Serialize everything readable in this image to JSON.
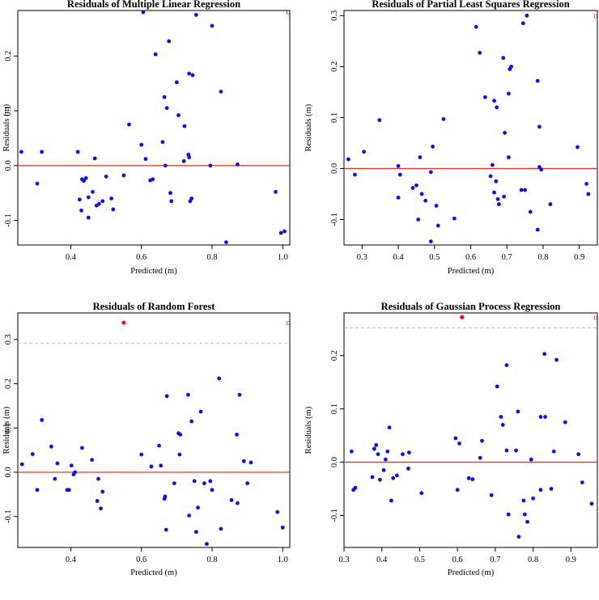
{
  "chart_data": [
    {
      "type": "scatter",
      "title": "Residuals of Multiple Linear Regression",
      "xlabel": "Predicted (m)",
      "ylabel": "Residuals (m)",
      "xlim": [
        0.25,
        1.02
      ],
      "ylim": [
        -0.145,
        0.283
      ],
      "xticks": [
        "0.4",
        "0.6",
        "0.8",
        "1.0"
      ],
      "yticks": [
        "-0.1",
        "0.0",
        "0.1",
        "0.2"
      ],
      "zero_line_color": "#e8342e",
      "point_color": "#1010e0",
      "outlier_symbol": "o",
      "points": [
        [
          0.26,
          0.025
        ],
        [
          0.305,
          -0.033
        ],
        [
          0.318,
          0.025
        ],
        [
          0.42,
          0.025
        ],
        [
          0.425,
          -0.062
        ],
        [
          0.43,
          -0.082
        ],
        [
          0.432,
          -0.025
        ],
        [
          0.437,
          -0.028
        ],
        [
          0.443,
          -0.023
        ],
        [
          0.45,
          -0.058
        ],
        [
          0.45,
          -0.095
        ],
        [
          0.462,
          -0.048
        ],
        [
          0.468,
          0.013
        ],
        [
          0.473,
          -0.073
        ],
        [
          0.48,
          -0.07
        ],
        [
          0.49,
          -0.065
        ],
        [
          0.5,
          -0.02
        ],
        [
          0.515,
          -0.06
        ],
        [
          0.52,
          -0.08
        ],
        [
          0.55,
          -0.018
        ],
        [
          0.565,
          0.075
        ],
        [
          0.6,
          0.038
        ],
        [
          0.605,
          0.28
        ],
        [
          0.612,
          0.012
        ],
        [
          0.625,
          -0.027
        ],
        [
          0.632,
          -0.025
        ],
        [
          0.64,
          0.203
        ],
        [
          0.66,
          0.043
        ],
        [
          0.665,
          0.125
        ],
        [
          0.668,
          0.0
        ],
        [
          0.672,
          0.105
        ],
        [
          0.678,
          0.227
        ],
        [
          0.682,
          -0.05
        ],
        [
          0.685,
          -0.065
        ],
        [
          0.7,
          0.152
        ],
        [
          0.705,
          0.092
        ],
        [
          0.72,
          0.008
        ],
        [
          0.722,
          0.072
        ],
        [
          0.733,
          0.02
        ],
        [
          0.735,
          0.015
        ],
        [
          0.735,
          0.168
        ],
        [
          0.738,
          -0.065
        ],
        [
          0.742,
          -0.06
        ],
        [
          0.745,
          0.165
        ],
        [
          0.755,
          0.275
        ],
        [
          0.795,
          0.0
        ],
        [
          0.8,
          0.255
        ],
        [
          0.825,
          0.135
        ],
        [
          0.84,
          -0.14
        ],
        [
          0.872,
          0.002
        ],
        [
          0.98,
          -0.048
        ],
        [
          0.995,
          -0.123
        ],
        [
          1.005,
          -0.12
        ]
      ],
      "outliers": [
        [
          1.02,
          0.28
        ]
      ]
    },
    {
      "type": "scatter",
      "title": "Residuals of Partial Least Squares Regression",
      "xlabel": "Predicted (m)",
      "ylabel": "Residuals (m)",
      "xlim": [
        0.25,
        0.95
      ],
      "ylim": [
        -0.15,
        0.31
      ],
      "xticks": [
        "0.3",
        "0.4",
        "0.5",
        "0.6",
        "0.7",
        "0.8",
        "0.9"
      ],
      "yticks": [
        "-0.1",
        "0.0",
        "0.1",
        "0.2",
        "0.3"
      ],
      "zero_line_color": "#e8342e",
      "point_color": "#1010e0",
      "outlier_symbol": "o",
      "points": [
        [
          0.262,
          0.018
        ],
        [
          0.28,
          -0.012
        ],
        [
          0.305,
          0.033
        ],
        [
          0.348,
          0.095
        ],
        [
          0.4,
          0.005
        ],
        [
          0.4,
          -0.057
        ],
        [
          0.405,
          -0.012
        ],
        [
          0.44,
          -0.038
        ],
        [
          0.45,
          -0.033
        ],
        [
          0.455,
          -0.1
        ],
        [
          0.46,
          0.022
        ],
        [
          0.465,
          -0.05
        ],
        [
          0.475,
          -0.063
        ],
        [
          0.49,
          -0.007
        ],
        [
          0.49,
          -0.143
        ],
        [
          0.495,
          0.043
        ],
        [
          0.505,
          -0.073
        ],
        [
          0.51,
          -0.112
        ],
        [
          0.525,
          0.097
        ],
        [
          0.555,
          -0.098
        ],
        [
          0.615,
          0.278
        ],
        [
          0.625,
          0.227
        ],
        [
          0.64,
          0.14
        ],
        [
          0.655,
          -0.015
        ],
        [
          0.66,
          0.007
        ],
        [
          0.665,
          -0.047
        ],
        [
          0.665,
          0.133
        ],
        [
          0.67,
          -0.025
        ],
        [
          0.672,
          0.12
        ],
        [
          0.675,
          -0.06
        ],
        [
          0.678,
          -0.07
        ],
        [
          0.69,
          0.217
        ],
        [
          0.692,
          -0.055
        ],
        [
          0.694,
          0.07
        ],
        [
          0.705,
          0.022
        ],
        [
          0.705,
          0.147
        ],
        [
          0.708,
          0.195
        ],
        [
          0.712,
          0.2
        ],
        [
          0.74,
          -0.042
        ],
        [
          0.745,
          0.285
        ],
        [
          0.75,
          -0.042
        ],
        [
          0.755,
          0.3
        ],
        [
          0.765,
          -0.085
        ],
        [
          0.785,
          0.172
        ],
        [
          0.785,
          -0.12
        ],
        [
          0.79,
          0.082
        ],
        [
          0.79,
          0.003
        ],
        [
          0.795,
          -0.002
        ],
        [
          0.82,
          -0.07
        ],
        [
          0.895,
          0.042
        ],
        [
          0.92,
          -0.03
        ],
        [
          0.925,
          -0.05
        ]
      ],
      "outliers": [
        [
          0.952,
          0.3
        ]
      ]
    },
    {
      "type": "scatter",
      "title": "Residuals of Random Forest",
      "xlabel": "Predicted (m)",
      "ylabel": "Residuals (m)",
      "xlim": [
        0.25,
        1.02
      ],
      "ylim": [
        -0.17,
        0.36
      ],
      "xticks": [
        "0.4",
        "0.6",
        "0.8",
        "1.0"
      ],
      "yticks": [
        "-0.1",
        "0.0",
        "0.1",
        "0.2",
        "0.3"
      ],
      "zero_line_color": "#e8342e",
      "point_color": "#1010e0",
      "threshold_line": 0.292,
      "highlight_point": [
        0.55,
        0.338
      ],
      "highlight_color": "#e0141c",
      "outlier_symbol": "o",
      "points": [
        [
          0.262,
          0.018
        ],
        [
          0.292,
          0.041
        ],
        [
          0.305,
          -0.04
        ],
        [
          0.318,
          0.118
        ],
        [
          0.345,
          0.058
        ],
        [
          0.355,
          -0.015
        ],
        [
          0.362,
          0.02
        ],
        [
          0.39,
          -0.04
        ],
        [
          0.395,
          -0.04
        ],
        [
          0.402,
          0.015
        ],
        [
          0.408,
          -0.005
        ],
        [
          0.412,
          0.0
        ],
        [
          0.432,
          0.055
        ],
        [
          0.46,
          0.028
        ],
        [
          0.475,
          -0.065
        ],
        [
          0.478,
          -0.015
        ],
        [
          0.485,
          -0.082
        ],
        [
          0.49,
          -0.044
        ],
        [
          0.6,
          0.04
        ],
        [
          0.628,
          0.013
        ],
        [
          0.65,
          0.06
        ],
        [
          0.655,
          0.015
        ],
        [
          0.665,
          -0.06
        ],
        [
          0.667,
          -0.055
        ],
        [
          0.67,
          -0.13
        ],
        [
          0.672,
          0.172
        ],
        [
          0.693,
          -0.025
        ],
        [
          0.705,
          0.088
        ],
        [
          0.708,
          0.04
        ],
        [
          0.71,
          0.085
        ],
        [
          0.732,
          0.175
        ],
        [
          0.735,
          -0.098
        ],
        [
          0.742,
          0.115
        ],
        [
          0.75,
          -0.02
        ],
        [
          0.755,
          -0.135
        ],
        [
          0.76,
          -0.08
        ],
        [
          0.768,
          0.137
        ],
        [
          0.778,
          -0.025
        ],
        [
          0.785,
          -0.162
        ],
        [
          0.795,
          -0.02
        ],
        [
          0.8,
          -0.04
        ],
        [
          0.82,
          0.212
        ],
        [
          0.825,
          -0.128
        ],
        [
          0.855,
          -0.063
        ],
        [
          0.87,
          0.085
        ],
        [
          0.872,
          -0.07
        ],
        [
          0.878,
          0.175
        ],
        [
          0.89,
          0.025
        ],
        [
          0.9,
          -0.025
        ],
        [
          0.91,
          0.022
        ],
        [
          0.985,
          -0.09
        ],
        [
          1.0,
          -0.125
        ]
      ],
      "outliers": [
        [
          1.02,
          0.338
        ]
      ]
    },
    {
      "type": "scatter",
      "title": "Residuals of Gaussian Process Regression",
      "xlabel": "Predicted (m)",
      "ylabel": "Residuals (m)",
      "xlim": [
        0.3,
        0.97
      ],
      "ylim": [
        -0.16,
        0.28
      ],
      "xticks": [
        "0.3",
        "0.4",
        "0.5",
        "0.6",
        "0.7",
        "0.8",
        "0.9"
      ],
      "yticks": [
        "-0.1",
        "0.0",
        "0.1",
        "0.2"
      ],
      "zero_line_color": "#e8342e",
      "point_color": "#1010e0",
      "threshold_line": 0.252,
      "highlight_point": [
        0.612,
        0.272
      ],
      "highlight_color": "#e0141c",
      "outlier_symbol": "o",
      "points": [
        [
          0.32,
          0.02
        ],
        [
          0.325,
          -0.052
        ],
        [
          0.33,
          -0.048
        ],
        [
          0.375,
          -0.028
        ],
        [
          0.38,
          0.025
        ],
        [
          0.385,
          0.032
        ],
        [
          0.39,
          0.015
        ],
        [
          0.395,
          -0.033
        ],
        [
          0.405,
          -0.015
        ],
        [
          0.41,
          0.005
        ],
        [
          0.415,
          0.02
        ],
        [
          0.42,
          0.065
        ],
        [
          0.425,
          -0.072
        ],
        [
          0.43,
          -0.03
        ],
        [
          0.44,
          -0.025
        ],
        [
          0.455,
          0.015
        ],
        [
          0.47,
          -0.012
        ],
        [
          0.472,
          0.018
        ],
        [
          0.505,
          -0.058
        ],
        [
          0.595,
          0.045
        ],
        [
          0.6,
          -0.052
        ],
        [
          0.605,
          0.035
        ],
        [
          0.63,
          -0.03
        ],
        [
          0.64,
          -0.032
        ],
        [
          0.66,
          0.008
        ],
        [
          0.665,
          0.04
        ],
        [
          0.69,
          -0.062
        ],
        [
          0.705,
          0.142
        ],
        [
          0.715,
          0.085
        ],
        [
          0.72,
          0.07
        ],
        [
          0.73,
          0.182
        ],
        [
          0.73,
          0.022
        ],
        [
          0.735,
          -0.098
        ],
        [
          0.755,
          0.022
        ],
        [
          0.76,
          0.095
        ],
        [
          0.762,
          -0.14
        ],
        [
          0.775,
          -0.072
        ],
        [
          0.778,
          -0.098
        ],
        [
          0.785,
          -0.112
        ],
        [
          0.795,
          0.005
        ],
        [
          0.8,
          -0.068
        ],
        [
          0.82,
          -0.052
        ],
        [
          0.82,
          0.085
        ],
        [
          0.83,
          0.203
        ],
        [
          0.832,
          0.085
        ],
        [
          0.848,
          -0.05
        ],
        [
          0.855,
          0.02
        ],
        [
          0.862,
          0.192
        ],
        [
          0.885,
          0.075
        ],
        [
          0.92,
          0.015
        ],
        [
          0.93,
          -0.038
        ],
        [
          0.955,
          -0.078
        ]
      ],
      "outliers": [
        [
          0.968,
          0.272
        ]
      ]
    }
  ]
}
